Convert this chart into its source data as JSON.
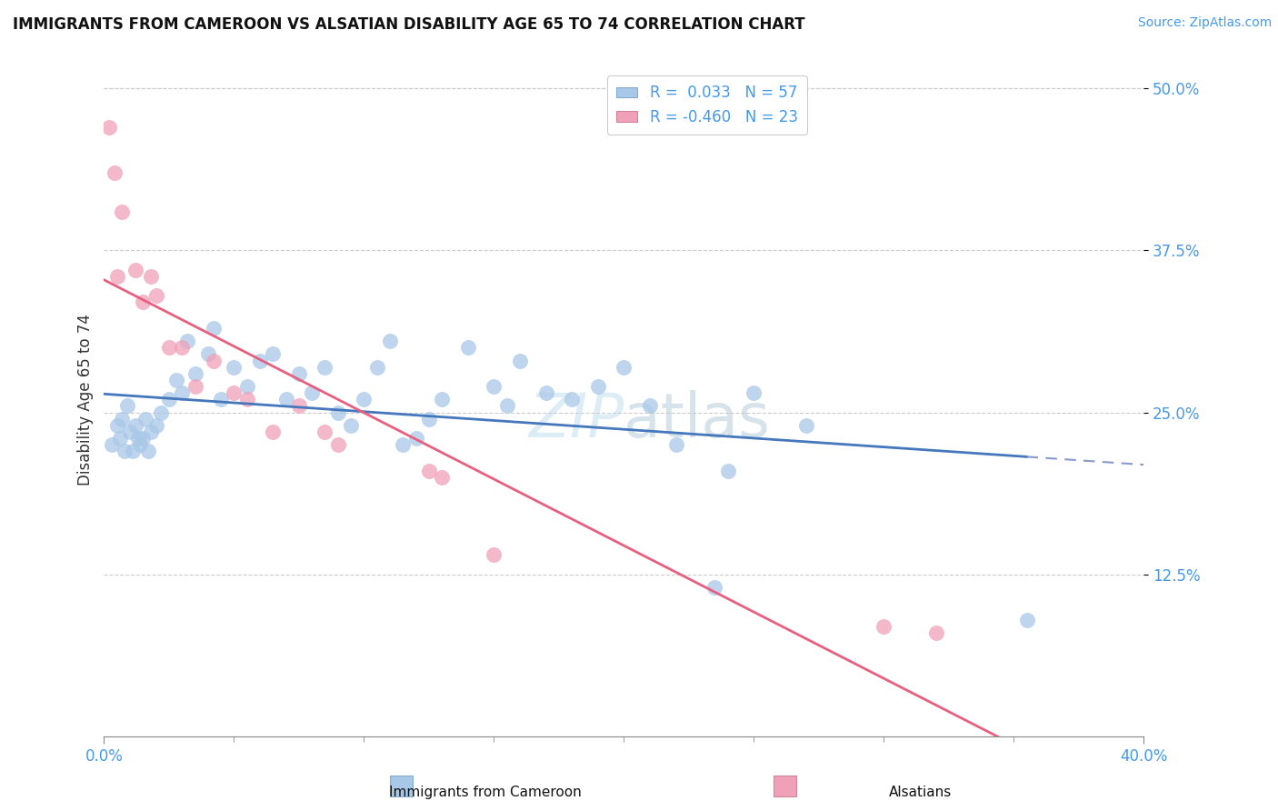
{
  "title": "IMMIGRANTS FROM CAMEROON VS ALSATIAN DISABILITY AGE 65 TO 74 CORRELATION CHART",
  "source": "Source: ZipAtlas.com",
  "ylabel": "Disability Age 65 to 74",
  "x_axis_label_blue": "Immigrants from Cameroon",
  "x_axis_label_pink": "Alsatians",
  "xlim": [
    0.0,
    40.0
  ],
  "ylim": [
    0.0,
    52.0
  ],
  "yticks": [
    12.5,
    25.0,
    37.5,
    50.0
  ],
  "xtick_left_label": "0.0%",
  "xtick_right_label": "40.0%",
  "legend_r_blue": "0.033",
  "legend_n_blue": "57",
  "legend_r_pink": "-0.460",
  "legend_n_pink": "23",
  "blue_color": "#A8C8E8",
  "pink_color": "#F0A0B8",
  "trend_blue_color": "#4477BB",
  "trend_pink_color": "#E86080",
  "trend_blue_dash_color": "#8899CC",
  "blue_scatter": [
    [
      0.3,
      22.5
    ],
    [
      0.5,
      24.0
    ],
    [
      0.6,
      23.0
    ],
    [
      0.7,
      24.5
    ],
    [
      0.8,
      22.0
    ],
    [
      0.9,
      25.5
    ],
    [
      1.0,
      23.5
    ],
    [
      1.1,
      22.0
    ],
    [
      1.2,
      24.0
    ],
    [
      1.3,
      23.0
    ],
    [
      1.4,
      22.5
    ],
    [
      1.5,
      23.0
    ],
    [
      1.6,
      24.5
    ],
    [
      1.7,
      22.0
    ],
    [
      1.8,
      23.5
    ],
    [
      2.0,
      24.0
    ],
    [
      2.2,
      25.0
    ],
    [
      2.5,
      26.0
    ],
    [
      2.8,
      27.5
    ],
    [
      3.0,
      26.5
    ],
    [
      3.2,
      30.5
    ],
    [
      3.5,
      28.0
    ],
    [
      4.0,
      29.5
    ],
    [
      4.2,
      31.5
    ],
    [
      4.5,
      26.0
    ],
    [
      5.0,
      28.5
    ],
    [
      5.5,
      27.0
    ],
    [
      6.0,
      29.0
    ],
    [
      6.5,
      29.5
    ],
    [
      7.0,
      26.0
    ],
    [
      7.5,
      28.0
    ],
    [
      8.0,
      26.5
    ],
    [
      8.5,
      28.5
    ],
    [
      9.0,
      25.0
    ],
    [
      9.5,
      24.0
    ],
    [
      10.0,
      26.0
    ],
    [
      10.5,
      28.5
    ],
    [
      11.0,
      30.5
    ],
    [
      11.5,
      22.5
    ],
    [
      12.0,
      23.0
    ],
    [
      12.5,
      24.5
    ],
    [
      13.0,
      26.0
    ],
    [
      14.0,
      30.0
    ],
    [
      15.0,
      27.0
    ],
    [
      15.5,
      25.5
    ],
    [
      16.0,
      29.0
    ],
    [
      17.0,
      26.5
    ],
    [
      18.0,
      26.0
    ],
    [
      19.0,
      27.0
    ],
    [
      20.0,
      28.5
    ],
    [
      21.0,
      25.5
    ],
    [
      22.0,
      22.5
    ],
    [
      23.5,
      11.5
    ],
    [
      24.0,
      20.5
    ],
    [
      25.0,
      26.5
    ],
    [
      27.0,
      24.0
    ],
    [
      35.5,
      9.0
    ]
  ],
  "pink_scatter": [
    [
      0.2,
      47.0
    ],
    [
      0.4,
      43.5
    ],
    [
      0.5,
      35.5
    ],
    [
      0.7,
      40.5
    ],
    [
      1.2,
      36.0
    ],
    [
      1.5,
      33.5
    ],
    [
      1.8,
      35.5
    ],
    [
      2.0,
      34.0
    ],
    [
      2.5,
      30.0
    ],
    [
      3.0,
      30.0
    ],
    [
      3.5,
      27.0
    ],
    [
      4.2,
      29.0
    ],
    [
      5.0,
      26.5
    ],
    [
      5.5,
      26.0
    ],
    [
      6.5,
      23.5
    ],
    [
      7.5,
      25.5
    ],
    [
      8.5,
      23.5
    ],
    [
      9.0,
      22.5
    ],
    [
      12.5,
      20.5
    ],
    [
      13.0,
      20.0
    ],
    [
      15.0,
      14.0
    ],
    [
      30.0,
      8.5
    ],
    [
      32.0,
      8.0
    ]
  ]
}
